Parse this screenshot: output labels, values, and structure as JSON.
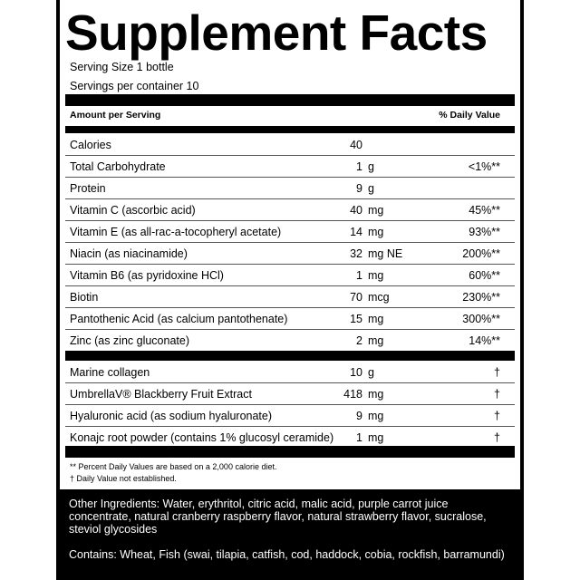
{
  "title": "Supplement Facts",
  "serving_size": "Serving Size 1 bottle",
  "servings_per_container": "Servings per container 10",
  "header": {
    "amount": "Amount per Serving",
    "dv": "% Daily Value"
  },
  "nutrients": [
    {
      "name": "Calories",
      "amount": "40",
      "unit": "",
      "dv": ""
    },
    {
      "name": "Total Carbohydrate",
      "amount": "1",
      "unit": "g",
      "dv": "<1%**"
    },
    {
      "name": "Protein",
      "amount": "9",
      "unit": "g",
      "dv": ""
    },
    {
      "name": "Vitamin C (ascorbic acid)",
      "amount": "40",
      "unit": "mg",
      "dv": "45%**"
    },
    {
      "name": "Vitamin E (as all-rac-a-tocopheryl acetate)",
      "amount": "14",
      "unit": "mg",
      "dv": "93%**"
    },
    {
      "name": "Niacin (as niacinamide)",
      "amount": "32",
      "unit": "mg NE",
      "dv": "200%**"
    },
    {
      "name": "Vitamin B6 (as pyridoxine HCl)",
      "amount": "1",
      "unit": "mg",
      "dv": "60%**"
    },
    {
      "name": "Biotin",
      "amount": "70",
      "unit": "mcg",
      "dv": "230%**"
    },
    {
      "name": "Pantothenic Acid (as calcium pantothenate)",
      "amount": "15",
      "unit": "mg",
      "dv": "300%**"
    },
    {
      "name": "Zinc (as zinc gluconate)",
      "amount": "2",
      "unit": "mg",
      "dv": "14%**"
    }
  ],
  "other": [
    {
      "name": "Marine collagen",
      "amount": "10",
      "unit": "g",
      "dv": "†"
    },
    {
      "name": "UmbrellaV® Blackberry Fruit Extract",
      "amount": "418",
      "unit": "mg",
      "dv": "†"
    },
    {
      "name": "Hyaluronic acid (as sodium hyaluronate)",
      "amount": "9",
      "unit": "mg",
      "dv": "†"
    },
    {
      "name": "Konajc root powder (contains 1% glucosyl ceramide)",
      "amount": "1",
      "unit": "mg",
      "dv": "†"
    }
  ],
  "notes": [
    "** Percent Daily Values are based on a 2,000 calorie diet.",
    "† Daily Value not established."
  ],
  "other_ingredients": "Other Ingredients: Water, erythritol, citric acid, malic acid, purple carrot juice concentrate, natural cranberry raspberry flavor, natural strawberry flavor, sucralose, steviol glycosides",
  "contains": "Contains: Wheat, Fish (swai, tilapia, catfish, cod, haddock, cobia, rockfish, barramundi)"
}
